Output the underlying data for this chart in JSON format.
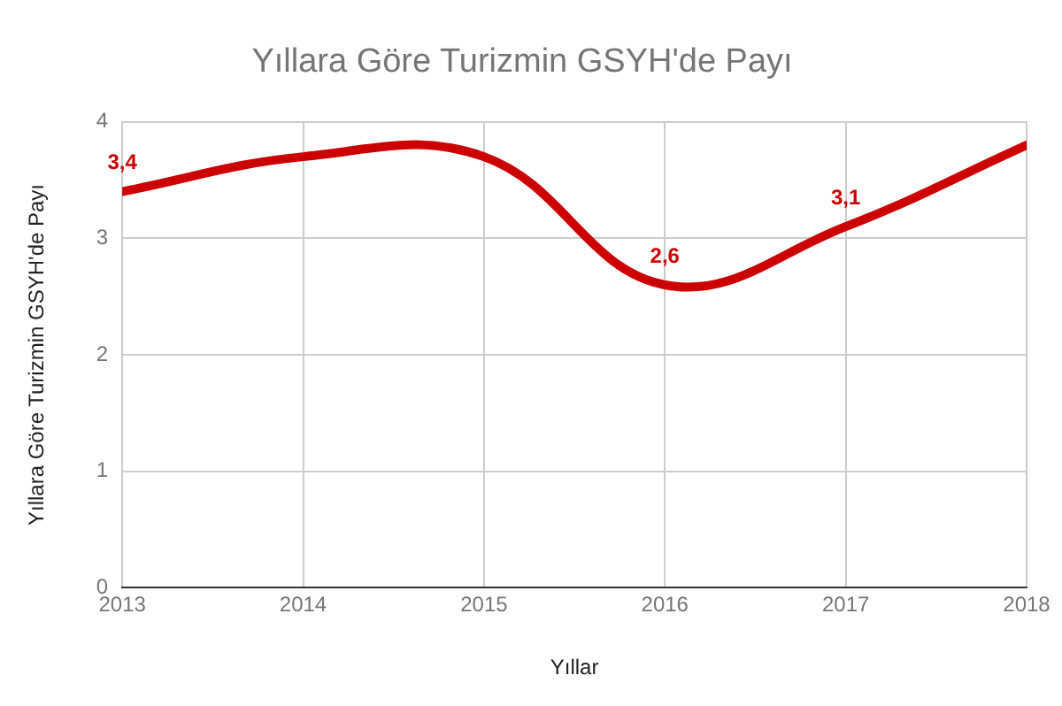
{
  "chart_data": {
    "type": "line",
    "title": "Yıllara Göre Turizmin GSYH'de Payı",
    "xlabel": "Yıllar",
    "ylabel": "Yıllara Göre Turizmin GSYH'de Payı",
    "x": [
      2013,
      2014,
      2015,
      2016,
      2017,
      2018
    ],
    "series": [
      {
        "color": "#cc0000",
        "values": [
          3.4,
          3.7,
          3.7,
          2.6,
          3.1,
          3.8
        ],
        "value_labels": [
          "3,4",
          null,
          null,
          "2,6",
          "3,1",
          null
        ]
      }
    ],
    "xlim": [
      2013,
      2018
    ],
    "xticks": [
      2013,
      2014,
      2015,
      2016,
      2017,
      2018
    ],
    "ylim": [
      0,
      4
    ],
    "yticks": [
      0,
      1,
      2,
      3,
      4
    ],
    "grid": true,
    "legend": false,
    "marker": "none",
    "line_style": "solid"
  }
}
